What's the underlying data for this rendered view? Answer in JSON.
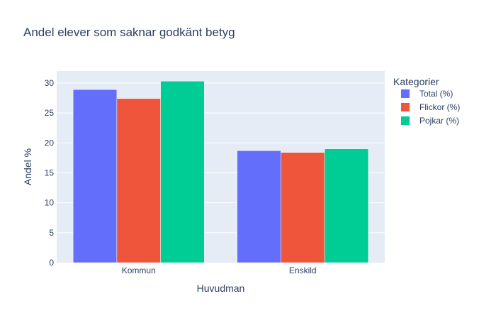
{
  "chart_data": {
    "type": "bar",
    "title": "Andel elever som saknar godkänt betyg",
    "xlabel": "Huvudman",
    "ylabel": "Andel %",
    "categories": [
      "Kommun",
      "Enskild"
    ],
    "series": [
      {
        "name": "Total (%)",
        "color": "#636efa",
        "values": [
          28.9,
          18.7
        ]
      },
      {
        "name": "Flickor (%)",
        "color": "#ef553b",
        "values": [
          27.4,
          18.4
        ]
      },
      {
        "name": "Pojkar (%)",
        "color": "#00cc96",
        "values": [
          30.3,
          19.0
        ]
      }
    ],
    "ylim": [
      0,
      32
    ],
    "yticks": [
      0,
      5,
      10,
      15,
      20,
      25,
      30
    ],
    "legend_title": "Kategorier",
    "legend_position": "right",
    "grid": true,
    "plot_bg": "#e5ecf6"
  }
}
